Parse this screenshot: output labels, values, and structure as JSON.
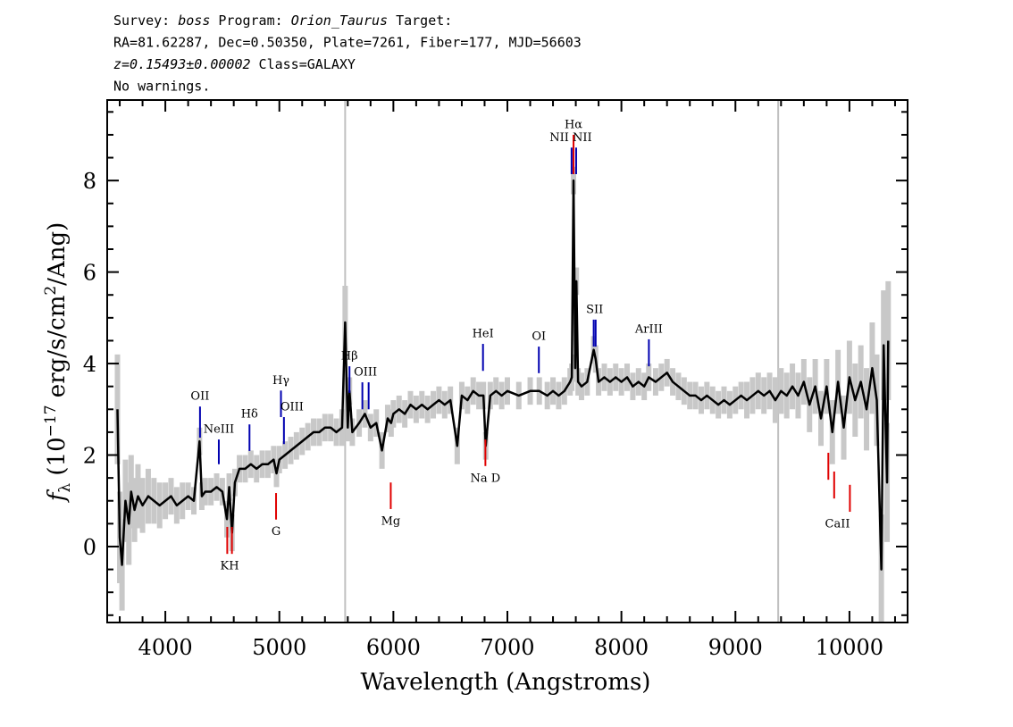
{
  "chart_data": {
    "type": "line",
    "header": [
      [
        {
          "text": "Survey: "
        },
        {
          "text": "boss",
          "italic": true
        },
        {
          "text": " Program: "
        },
        {
          "text": "Orion_Taurus",
          "italic": true
        },
        {
          "text": " Target:"
        }
      ],
      [
        {
          "text": "RA=81.62287, Dec=0.50350, Plate=7261, Fiber=177, MJD=56603"
        }
      ],
      [
        {
          "text": "z=0.15493±0.00002",
          "italic": true
        },
        {
          "text": " Class=GALAXY"
        }
      ],
      [
        {
          "text": "No warnings."
        }
      ]
    ],
    "xlabel": "Wavelength (Angstroms)",
    "ylabel": [
      {
        "text": "f",
        "italic": true
      },
      {
        "text": "λ",
        "style": "sub"
      },
      {
        "text": " (10"
      },
      {
        "text": "−17",
        "style": "sup"
      },
      {
        "text": " erg/s/cm"
      },
      {
        "text": "2",
        "style": "sup"
      },
      {
        "text": "/Ang)"
      }
    ],
    "xlim": [
      3490,
      10510
    ],
    "ylim": [
      -1.66,
      9.76
    ],
    "xticks": [
      4000,
      5000,
      6000,
      7000,
      8000,
      9000,
      10000
    ],
    "yticks": [
      0,
      2,
      4,
      6,
      8
    ],
    "xticks_minor": [
      3600,
      3800,
      4200,
      4400,
      4600,
      4800,
      5200,
      5400,
      5600,
      5800,
      6200,
      6400,
      6600,
      6800,
      7200,
      7400,
      7600,
      7800,
      8200,
      8400,
      8600,
      8800,
      9200,
      9400,
      9600,
      9800,
      10200,
      10400
    ],
    "yticks_minor": [
      -1.5,
      -1,
      -0.5,
      0.5,
      1,
      1.5,
      2.5,
      3,
      3.5,
      4.5,
      5,
      5.5,
      6.5,
      7,
      7.5,
      8.5,
      9,
      9.5
    ],
    "vlines": [
      5577,
      9375
    ],
    "vline_color": "#c0c0c0",
    "x": [
      3580,
      3600,
      3620,
      3650,
      3680,
      3700,
      3730,
      3760,
      3800,
      3850,
      3900,
      3950,
      4000,
      4050,
      4100,
      4150,
      4200,
      4250,
      4300,
      4320,
      4350,
      4400,
      4450,
      4500,
      4540,
      4560,
      4585,
      4610,
      4650,
      4700,
      4750,
      4800,
      4850,
      4900,
      4950,
      4975,
      5000,
      5050,
      5100,
      5150,
      5200,
      5250,
      5300,
      5350,
      5400,
      5450,
      5500,
      5550,
      5577,
      5600,
      5615,
      5640,
      5700,
      5750,
      5800,
      5850,
      5900,
      5950,
      5980,
      6000,
      6050,
      6100,
      6150,
      6200,
      6250,
      6300,
      6350,
      6400,
      6450,
      6500,
      6560,
      6600,
      6650,
      6700,
      6750,
      6790,
      6810,
      6850,
      6900,
      6950,
      7000,
      7100,
      7200,
      7280,
      7350,
      7400,
      7450,
      7500,
      7550,
      7565,
      7580,
      7595,
      7605,
      7620,
      7650,
      7700,
      7757,
      7774,
      7800,
      7850,
      7900,
      7950,
      8000,
      8050,
      8100,
      8150,
      8200,
      8240,
      8300,
      8350,
      8400,
      8450,
      8500,
      8550,
      8600,
      8650,
      8700,
      8750,
      8800,
      8850,
      8900,
      8950,
      9000,
      9050,
      9100,
      9150,
      9200,
      9250,
      9300,
      9350,
      9400,
      9450,
      9500,
      9550,
      9600,
      9650,
      9700,
      9750,
      9800,
      9850,
      9900,
      9950,
      10000,
      10050,
      10100,
      10150,
      10200,
      10240,
      10280,
      10300,
      10330,
      10340
    ],
    "series": [
      {
        "color": "#000000",
        "error_color": "#c8c8c8",
        "values": [
          3.0,
          0.2,
          -0.4,
          1.0,
          0.5,
          1.2,
          0.8,
          1.1,
          0.9,
          1.1,
          1.0,
          0.9,
          1.0,
          1.1,
          0.9,
          1.0,
          1.1,
          1.0,
          2.3,
          1.1,
          1.2,
          1.2,
          1.3,
          1.2,
          0.6,
          1.3,
          0.3,
          1.4,
          1.7,
          1.7,
          1.8,
          1.7,
          1.8,
          1.8,
          1.9,
          1.6,
          1.9,
          2.0,
          2.1,
          2.2,
          2.3,
          2.4,
          2.5,
          2.5,
          2.6,
          2.6,
          2.5,
          2.6,
          4.9,
          2.6,
          3.4,
          2.5,
          2.7,
          2.9,
          2.6,
          2.7,
          2.1,
          2.8,
          2.7,
          2.9,
          3.0,
          2.9,
          3.1,
          3.0,
          3.1,
          3.0,
          3.1,
          3.2,
          3.1,
          3.2,
          2.2,
          3.3,
          3.2,
          3.4,
          3.3,
          3.3,
          2.2,
          3.3,
          3.4,
          3.3,
          3.4,
          3.3,
          3.4,
          3.4,
          3.3,
          3.4,
          3.3,
          3.4,
          3.6,
          3.7,
          8.0,
          3.9,
          5.8,
          3.6,
          3.5,
          3.6,
          4.3,
          4.1,
          3.6,
          3.7,
          3.6,
          3.7,
          3.6,
          3.7,
          3.5,
          3.6,
          3.5,
          3.7,
          3.6,
          3.7,
          3.8,
          3.6,
          3.5,
          3.4,
          3.3,
          3.3,
          3.2,
          3.3,
          3.2,
          3.1,
          3.2,
          3.1,
          3.2,
          3.3,
          3.2,
          3.3,
          3.4,
          3.3,
          3.4,
          3.2,
          3.4,
          3.3,
          3.5,
          3.3,
          3.6,
          3.1,
          3.5,
          2.8,
          3.5,
          2.5,
          3.6,
          2.6,
          3.7,
          3.2,
          3.6,
          3.0,
          3.9,
          3.2,
          -0.5,
          4.4,
          1.4,
          4.5
        ],
        "errors": [
          1.2,
          1.0,
          1.0,
          0.9,
          0.9,
          0.8,
          0.7,
          0.7,
          0.6,
          0.6,
          0.5,
          0.5,
          0.4,
          0.4,
          0.4,
          0.4,
          0.3,
          0.3,
          0.3,
          0.3,
          0.3,
          0.3,
          0.3,
          0.3,
          0.4,
          0.3,
          0.4,
          0.3,
          0.3,
          0.3,
          0.3,
          0.3,
          0.3,
          0.3,
          0.3,
          0.3,
          0.3,
          0.3,
          0.3,
          0.3,
          0.3,
          0.3,
          0.3,
          0.3,
          0.3,
          0.3,
          0.3,
          0.4,
          0.8,
          0.3,
          0.3,
          0.3,
          0.3,
          0.3,
          0.3,
          0.3,
          0.4,
          0.3,
          0.3,
          0.3,
          0.3,
          0.3,
          0.3,
          0.3,
          0.3,
          0.3,
          0.3,
          0.3,
          0.3,
          0.3,
          0.4,
          0.3,
          0.3,
          0.3,
          0.3,
          0.3,
          0.3,
          0.3,
          0.3,
          0.3,
          0.3,
          0.3,
          0.3,
          0.3,
          0.3,
          0.3,
          0.3,
          0.3,
          0.3,
          0.3,
          0.3,
          0.3,
          0.3,
          0.3,
          0.3,
          0.3,
          0.3,
          0.3,
          0.3,
          0.3,
          0.3,
          0.3,
          0.3,
          0.3,
          0.3,
          0.3,
          0.3,
          0.3,
          0.3,
          0.3,
          0.3,
          0.3,
          0.3,
          0.3,
          0.3,
          0.3,
          0.3,
          0.3,
          0.3,
          0.3,
          0.3,
          0.3,
          0.3,
          0.3,
          0.4,
          0.4,
          0.4,
          0.4,
          0.4,
          0.5,
          0.5,
          0.5,
          0.5,
          0.5,
          0.5,
          0.6,
          0.6,
          0.6,
          0.6,
          0.7,
          0.7,
          0.7,
          0.8,
          0.8,
          0.8,
          0.9,
          1.0,
          1.0,
          1.2,
          1.2,
          1.3,
          1.3
        ]
      }
    ],
    "annotations": [
      {
        "label": "OII",
        "color": "#0000b0",
        "side": "above",
        "lines": [
          {
            "x": 4304,
            "y": [
              2.38,
              3.06
            ]
          }
        ]
      },
      {
        "label": "NeIII",
        "color": "#0000b0",
        "side": "above",
        "lines": [
          {
            "x": 4469,
            "y": [
              1.8,
              2.34
            ]
          }
        ]
      },
      {
        "label": "Hδ",
        "color": "#0000b0",
        "side": "above",
        "lines": [
          {
            "x": 4738,
            "y": [
              2.09,
              2.67
            ]
          }
        ]
      },
      {
        "label": "Hγ",
        "color": "#0000b0",
        "side": "above",
        "lines": [
          {
            "x": 5014,
            "y": [
              2.83,
              3.41
            ]
          }
        ]
      },
      {
        "label": "OIII",
        "color": "#0000b0",
        "side": "above",
        "lines": [
          {
            "x": 5040,
            "y": [
              2.24,
              2.83
            ]
          }
        ],
        "align": "start"
      },
      {
        "label": "Hβ",
        "color": "#0000b0",
        "side": "above",
        "lines": [
          {
            "x": 5615,
            "y": [
              3.36,
              3.94
            ]
          }
        ]
      },
      {
        "label": "OIII",
        "color": "#0000b0",
        "side": "above",
        "lines": [
          {
            "x": 5728,
            "y": [
              3.0,
              3.59
            ]
          },
          {
            "x": 5783,
            "y": [
              3.0,
              3.59
            ]
          }
        ]
      },
      {
        "label": "HeI",
        "color": "#0000b0",
        "side": "above",
        "lines": [
          {
            "x": 6786,
            "y": [
              3.84,
              4.43
            ]
          }
        ]
      },
      {
        "label": "OI",
        "color": "#0000b0",
        "side": "above",
        "lines": [
          {
            "x": 7276,
            "y": [
              3.79,
              4.37
            ]
          }
        ]
      },
      {
        "label": "NII",
        "color": "#0000b0",
        "side": "above",
        "lines": [
          {
            "x": 7563,
            "y": [
              8.14,
              8.72
            ]
          }
        ],
        "align": "end"
      },
      {
        "label": "Hα",
        "color": "#e00000",
        "side": "above",
        "lines": [
          {
            "x": 7580,
            "y": [
              8.14,
              9.0
            ]
          }
        ]
      },
      {
        "label": "NII",
        "color": "#0000b0",
        "side": "above",
        "lines": [
          {
            "x": 7603,
            "y": [
              8.14,
              8.72
            ]
          }
        ],
        "align": "start"
      },
      {
        "label": "SII",
        "color": "#0000b0",
        "side": "above",
        "lines": [
          {
            "x": 7757,
            "y": [
              4.37,
              4.96
            ]
          },
          {
            "x": 7774,
            "y": [
              4.37,
              4.96
            ]
          }
        ]
      },
      {
        "label": "ArIII",
        "color": "#0000b0",
        "side": "above",
        "lines": [
          {
            "x": 8241,
            "y": [
              3.94,
              4.53
            ]
          }
        ]
      },
      {
        "label": "KH",
        "color": "#e00000",
        "side": "below",
        "lines": [
          {
            "x": 4543,
            "y": [
              -0.16,
              0.43
            ]
          },
          {
            "x": 4584,
            "y": [
              -0.16,
              0.43
            ]
          }
        ]
      },
      {
        "label": "G",
        "color": "#e00000",
        "side": "below",
        "lines": [
          {
            "x": 4971,
            "y": [
              0.59,
              1.17
            ]
          }
        ]
      },
      {
        "label": "Mg",
        "color": "#e00000",
        "side": "below",
        "lines": [
          {
            "x": 5977,
            "y": [
              0.82,
              1.4
            ]
          }
        ]
      },
      {
        "label": "Na D",
        "color": "#e00000",
        "side": "below",
        "lines": [
          {
            "x": 6807,
            "y": [
              1.76,
              2.34
            ]
          }
        ]
      },
      {
        "label": "CaII",
        "color": "#e00000",
        "side": "below",
        "lines": [
          {
            "x": 9815,
            "y": [
              1.46,
              2.05
            ]
          },
          {
            "x": 9866,
            "y": [
              1.05,
              1.64
            ]
          },
          {
            "x": 10004,
            "y": [
              0.76,
              1.35
            ]
          }
        ]
      }
    ]
  }
}
